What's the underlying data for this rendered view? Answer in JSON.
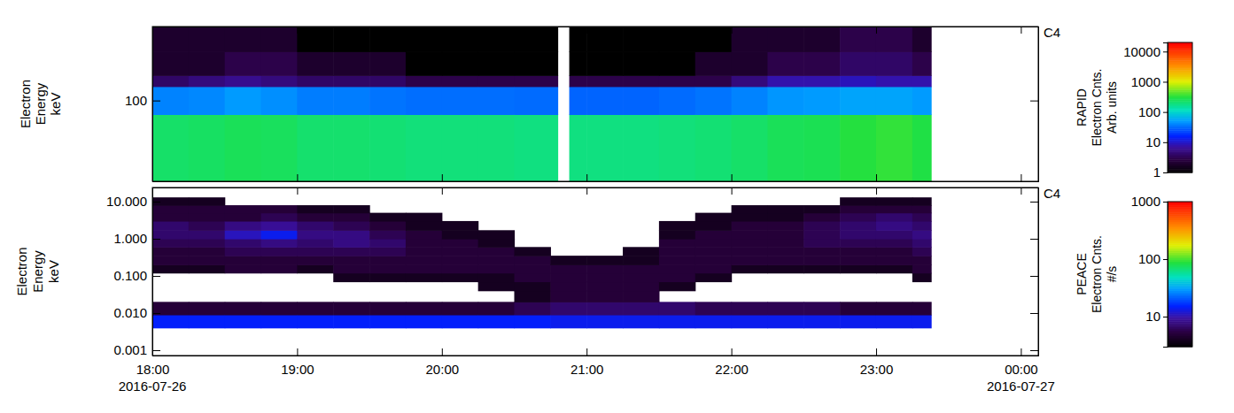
{
  "chart_data": [
    {
      "type": "heatmap",
      "title": "C4",
      "ylabel": [
        "Electron",
        "Energy",
        "keV"
      ],
      "colorbar_label": [
        "RAPID",
        "Electron Cnts.",
        "Arb. units"
      ],
      "x": [
        18.0,
        18.25,
        18.5,
        18.75,
        19.0,
        19.25,
        19.5,
        19.75,
        20.0,
        20.25,
        20.5,
        20.8,
        20.88,
        21.0,
        21.25,
        21.5,
        21.75,
        22.0,
        22.25,
        22.5,
        22.75,
        23.0,
        23.25,
        23.38
      ],
      "y": [
        22,
        77,
        130,
        160,
        250,
        400
      ],
      "z": [
        [
          230,
          40,
          4,
          2,
          2
        ],
        [
          240,
          42,
          5,
          2,
          2
        ],
        [
          260,
          50,
          6,
          3,
          2
        ],
        [
          250,
          45,
          5,
          3,
          2
        ],
        [
          220,
          38,
          4,
          2,
          1
        ],
        [
          220,
          38,
          4,
          2,
          1
        ],
        [
          210,
          35,
          4,
          2,
          1
        ],
        [
          200,
          33,
          3,
          1,
          1
        ],
        [
          200,
          33,
          3,
          1,
          1
        ],
        [
          200,
          33,
          3,
          1,
          1
        ],
        [
          190,
          32,
          3,
          1,
          1
        ],
        [
          null,
          null,
          null,
          null,
          null
        ],
        [
          190,
          30,
          3,
          1,
          1
        ],
        [
          190,
          30,
          3,
          1,
          1
        ],
        [
          190,
          30,
          3,
          1,
          1
        ],
        [
          200,
          32,
          3,
          1,
          1
        ],
        [
          210,
          35,
          3,
          2,
          1
        ],
        [
          230,
          40,
          5,
          2,
          2
        ],
        [
          260,
          48,
          8,
          3,
          2
        ],
        [
          270,
          50,
          8,
          3,
          2
        ],
        [
          320,
          55,
          9,
          4,
          3
        ],
        [
          350,
          55,
          8,
          4,
          3
        ],
        [
          300,
          50,
          8,
          3,
          2
        ]
      ],
      "xlim": [
        18,
        24.12
      ],
      "xticks": [
        18,
        19,
        20,
        21,
        22,
        23,
        24
      ],
      "ylim": [
        22,
        400
      ],
      "yticks": [
        100
      ],
      "log": "y",
      "clim": [
        1,
        20000
      ],
      "cticks": [
        1,
        10,
        100,
        1000,
        10000
      ],
      "tick_labels": "y"
    },
    {
      "type": "heatmap",
      "title": "C4",
      "ylabel": [
        "Electron",
        "Energy",
        "keV"
      ],
      "colorbar_label": [
        "PEACE",
        "Electron Cnts.",
        "#/s"
      ],
      "x": [
        18.0,
        18.25,
        18.5,
        18.75,
        19.0,
        19.25,
        19.5,
        19.75,
        20.0,
        20.25,
        20.5,
        20.75,
        21.0,
        21.25,
        21.5,
        21.75,
        22.0,
        22.25,
        22.5,
        22.75,
        23.0,
        23.25,
        23.38
      ],
      "y": [
        0.004,
        0.009,
        0.02,
        0.04,
        0.07,
        0.12,
        0.2,
        0.35,
        0.6,
        1.0,
        1.7,
        3.0,
        5.0,
        8.0,
        13.0
      ],
      "z": [
        [
          15,
          5,
          null,
          null,
          null,
          4,
          5,
          5,
          6,
          7,
          7,
          5,
          5,
          4
        ],
        [
          15,
          5,
          null,
          null,
          null,
          4,
          5,
          5,
          6,
          7,
          6,
          5,
          5,
          4
        ],
        [
          15,
          5,
          null,
          null,
          null,
          5,
          5,
          6,
          7,
          11,
          8,
          5,
          5,
          null
        ],
        [
          15,
          5,
          null,
          null,
          null,
          5,
          5,
          6,
          8,
          14,
          9,
          6,
          5,
          null
        ],
        [
          15,
          5,
          null,
          null,
          null,
          4,
          5,
          6,
          7,
          8,
          7,
          5,
          4,
          null
        ],
        [
          15,
          5,
          null,
          null,
          4,
          5,
          5,
          6,
          8,
          8,
          6,
          5,
          4,
          null
        ],
        [
          15,
          5,
          null,
          null,
          4,
          5,
          5,
          6,
          7,
          6,
          5,
          4,
          null,
          null
        ],
        [
          15,
          5,
          null,
          null,
          4,
          5,
          5,
          5,
          5,
          5,
          4,
          4,
          null,
          null
        ],
        [
          15,
          5,
          null,
          null,
          4,
          5,
          5,
          5,
          5,
          4,
          4,
          null,
          null,
          null
        ],
        [
          15,
          5,
          null,
          4,
          4,
          5,
          5,
          5,
          4,
          4,
          null,
          null,
          null,
          null
        ],
        [
          15,
          6,
          4,
          4,
          5,
          5,
          5,
          4,
          null,
          null,
          null,
          null,
          null,
          null
        ],
        [
          14,
          7,
          5,
          5,
          5,
          5,
          4,
          null,
          null,
          null,
          null,
          null,
          null,
          null
        ],
        [
          14,
          7,
          5,
          5,
          5,
          5,
          4,
          null,
          null,
          null,
          null,
          null,
          null,
          null
        ],
        [
          14,
          7,
          5,
          5,
          5,
          5,
          4,
          4,
          null,
          null,
          null,
          null,
          null,
          null
        ],
        [
          14,
          7,
          null,
          4,
          5,
          5,
          5,
          5,
          5,
          4,
          4,
          null,
          null,
          null
        ],
        [
          14,
          6,
          null,
          null,
          4,
          5,
          5,
          5,
          5,
          5,
          4,
          4,
          null,
          null
        ],
        [
          14,
          6,
          null,
          null,
          null,
          4,
          5,
          5,
          5,
          5,
          5,
          4,
          4,
          null
        ],
        [
          14,
          6,
          null,
          null,
          null,
          4,
          5,
          5,
          5,
          5,
          5,
          4,
          4,
          null
        ],
        [
          14,
          6,
          null,
          null,
          null,
          4,
          5,
          5,
          6,
          6,
          6,
          5,
          4,
          null
        ],
        [
          14,
          5,
          null,
          null,
          null,
          4,
          5,
          5,
          6,
          7,
          7,
          6,
          5,
          4
        ],
        [
          14,
          5,
          null,
          null,
          null,
          4,
          5,
          5,
          6,
          7,
          8,
          7,
          5,
          4
        ],
        [
          14,
          5,
          null,
          null,
          4,
          5,
          5,
          6,
          7,
          8,
          7,
          6,
          5,
          4
        ]
      ],
      "xlim": [
        18,
        24.12
      ],
      "xticks": [
        {
          "value": 18,
          "label": "18:00"
        },
        {
          "value": 19,
          "label": "19:00"
        },
        {
          "value": 20,
          "label": "20:00"
        },
        {
          "value": 21,
          "label": "21:00"
        },
        {
          "value": 22,
          "label": "22:00"
        },
        {
          "value": 23,
          "label": "23:00"
        },
        {
          "value": 24,
          "label": "00:00"
        }
      ],
      "x_dates": [
        {
          "value": 18,
          "label": "2016-07-26"
        },
        {
          "value": 24,
          "label": "2016-07-27"
        }
      ],
      "ylim": [
        0.00072,
        24
      ],
      "yticks": [
        0.001,
        {
          "value": 0.01,
          "label": "0.010"
        },
        {
          "value": 0.1,
          "label": "0.100"
        },
        {
          "value": 1,
          "label": "1.000"
        },
        {
          "value": 10,
          "label": "10.000"
        }
      ],
      "log": "y",
      "clim": [
        3,
        1000
      ],
      "cticks": [
        10,
        100,
        1000
      ]
    }
  ]
}
